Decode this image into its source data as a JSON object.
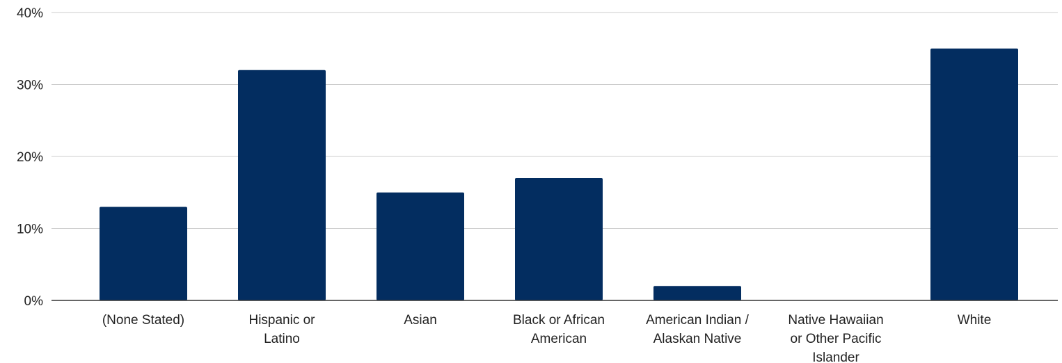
{
  "chart_data": {
    "type": "bar",
    "title": "",
    "xlabel": "",
    "ylabel": "",
    "categories": [
      "(None Stated)",
      "Hispanic or Latino",
      "Asian",
      "Black or African American",
      "American Indian / Alaskan Native",
      "Native Hawaiian or Other Pacific Islander",
      "White"
    ],
    "category_label_lines": [
      [
        "(None Stated)"
      ],
      [
        "Hispanic or",
        "Latino"
      ],
      [
        "Asian"
      ],
      [
        "Black or African",
        "American"
      ],
      [
        "American Indian /",
        "Alaskan Native"
      ],
      [
        "Native Hawaiian",
        "or Other Pacific",
        "Islander"
      ],
      [
        "White"
      ]
    ],
    "values": [
      13,
      32,
      15,
      17,
      2,
      0,
      35
    ],
    "value_unit": "%",
    "ylim": [
      0,
      40
    ],
    "yticks": [
      0,
      10,
      20,
      30,
      40
    ],
    "ytick_labels": [
      "0%",
      "10%",
      "20%",
      "30%",
      "40%"
    ],
    "grid": true,
    "legend": "none",
    "colors": {
      "bar": "#032d60",
      "grid": "#cccccc",
      "axis": "#333333",
      "text": "#222222"
    }
  }
}
